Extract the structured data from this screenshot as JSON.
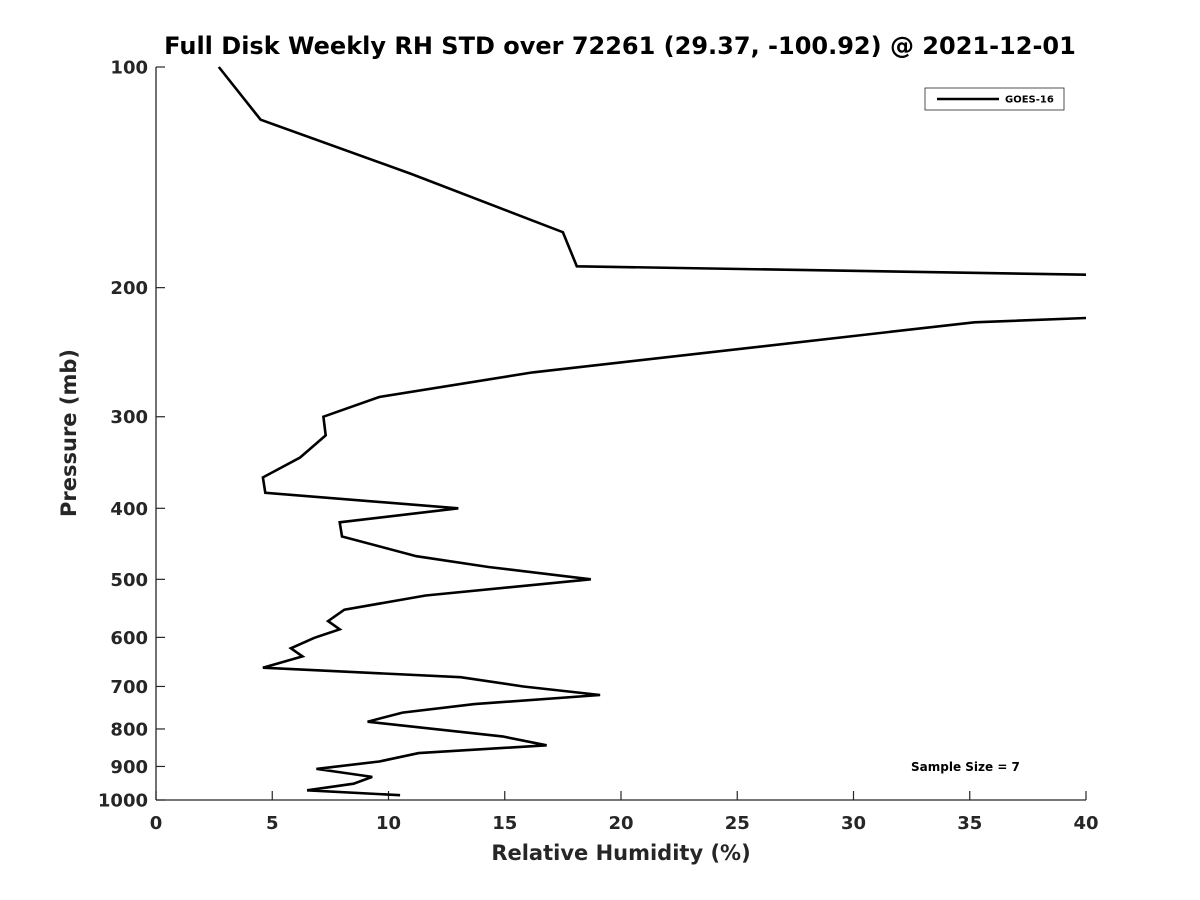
{
  "chart_data": {
    "type": "line",
    "title": "Full Disk Weekly RH STD over 72261 (29.37, -100.92) @ 2021-12-01",
    "xlabel": "Relative Humidity (%)",
    "ylabel": "Pressure (mb)",
    "xlim": [
      0,
      40
    ],
    "ylim": [
      100,
      1000
    ],
    "y_scale": "log",
    "y_reversed": true,
    "x_ticks": [
      0,
      5,
      10,
      15,
      20,
      25,
      30,
      35,
      40
    ],
    "x_tick_labels": [
      "0",
      "5",
      "10",
      "15",
      "20",
      "25",
      "30",
      "35",
      "40"
    ],
    "y_ticks": [
      100,
      200,
      300,
      400,
      500,
      600,
      700,
      800,
      900,
      1000
    ],
    "y_tick_labels": [
      "100",
      "200",
      "300",
      "400",
      "500",
      "600",
      "700",
      "800",
      "900",
      "1000"
    ],
    "grid": false,
    "legend_position": "top-right",
    "annotation": "Sample Size = 7",
    "series": [
      {
        "name": "GOES-16",
        "color": "#000000",
        "segments": [
          [
            {
              "x": 2.7,
              "y": 100
            },
            {
              "x": 4.5,
              "y": 118
            },
            {
              "x": 11.0,
              "y": 140
            },
            {
              "x": 17.5,
              "y": 168
            },
            {
              "x": 18.1,
              "y": 187
            },
            {
              "x": 40.0,
              "y": 192
            }
          ],
          [
            {
              "x": 40.0,
              "y": 220
            },
            {
              "x": 35.2,
              "y": 223
            },
            {
              "x": 16.2,
              "y": 261
            },
            {
              "x": 9.6,
              "y": 282
            },
            {
              "x": 7.2,
              "y": 300
            },
            {
              "x": 7.3,
              "y": 318
            },
            {
              "x": 6.2,
              "y": 341
            },
            {
              "x": 4.6,
              "y": 363
            },
            {
              "x": 4.7,
              "y": 381
            },
            {
              "x": 13.0,
              "y": 400
            },
            {
              "x": 7.9,
              "y": 418
            },
            {
              "x": 8.0,
              "y": 437
            },
            {
              "x": 11.2,
              "y": 465
            },
            {
              "x": 14.3,
              "y": 481
            },
            {
              "x": 18.7,
              "y": 500
            },
            {
              "x": 11.6,
              "y": 526
            },
            {
              "x": 8.1,
              "y": 550
            },
            {
              "x": 7.4,
              "y": 570
            },
            {
              "x": 7.9,
              "y": 585
            },
            {
              "x": 6.8,
              "y": 601
            },
            {
              "x": 5.8,
              "y": 621
            },
            {
              "x": 6.3,
              "y": 637
            },
            {
              "x": 4.6,
              "y": 660
            },
            {
              "x": 13.1,
              "y": 680
            },
            {
              "x": 15.8,
              "y": 700
            },
            {
              "x": 19.1,
              "y": 719
            },
            {
              "x": 13.7,
              "y": 740
            },
            {
              "x": 10.6,
              "y": 760
            },
            {
              "x": 9.1,
              "y": 782
            },
            {
              "x": 14.9,
              "y": 819
            },
            {
              "x": 16.8,
              "y": 842
            },
            {
              "x": 11.3,
              "y": 863
            },
            {
              "x": 9.6,
              "y": 886
            },
            {
              "x": 6.9,
              "y": 907
            },
            {
              "x": 9.3,
              "y": 930
            },
            {
              "x": 8.5,
              "y": 950
            },
            {
              "x": 6.5,
              "y": 970
            },
            {
              "x": 10.5,
              "y": 985
            }
          ]
        ]
      }
    ]
  }
}
